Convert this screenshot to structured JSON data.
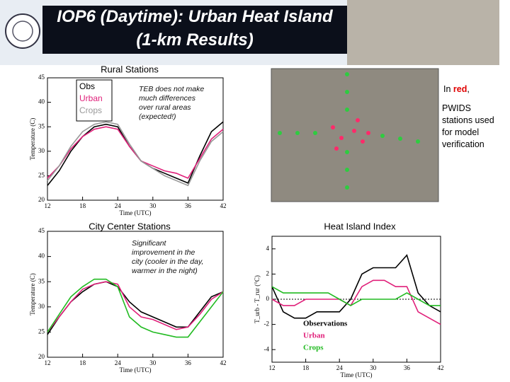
{
  "slide": {
    "title": [
      "IOP6 (Daytime):  Urban Heat Island",
      "(1-km Results)"
    ],
    "note": [
      "In ",
      "red",
      ",",
      "PWIDS stations used for model verification"
    ]
  },
  "chart_data": [
    {
      "type": "line",
      "title": "Rural Stations",
      "annotation": "TEB does not make much differences over rural areas (expected!)",
      "x_label": "Time (UTC)",
      "y_label": "Temperature (C)",
      "xlim": [
        12,
        42
      ],
      "xticks": [
        12,
        18,
        24,
        30,
        36,
        42
      ],
      "ylim": [
        20,
        45
      ],
      "yticks": [
        20,
        25,
        30,
        35,
        40,
        45
      ],
      "legend": "upper-left",
      "x": [
        12,
        14,
        16,
        18,
        20,
        22,
        24,
        26,
        28,
        30,
        32,
        34,
        36,
        38,
        40,
        42
      ],
      "series": [
        {
          "name": "Obs",
          "color": "#000000",
          "values": [
            23,
            26,
            30,
            33,
            35,
            35.5,
            35,
            31,
            28,
            26.5,
            25.5,
            24.5,
            23.5,
            29,
            34,
            36
          ]
        },
        {
          "name": "Urban",
          "color": "#e0207a",
          "values": [
            24.5,
            27,
            30.5,
            33,
            34.5,
            35,
            34.5,
            31,
            28,
            27,
            26,
            25.5,
            24.5,
            28.5,
            32.5,
            34.5
          ]
        },
        {
          "name": "Crops",
          "color": "#999999",
          "values": [
            24,
            27,
            31,
            34,
            35.5,
            36,
            35.5,
            31.5,
            28,
            26.5,
            25,
            24,
            23,
            28,
            32,
            34
          ]
        }
      ]
    },
    {
      "type": "line",
      "title": "City Center Stations",
      "annotation": "Significant improvement in the city (cooler in the day, warmer in the night)",
      "x_label": "Time (UTC)",
      "y_label": "Temperature (C)",
      "xlim": [
        12,
        42
      ],
      "xticks": [
        12,
        18,
        24,
        30,
        36,
        42
      ],
      "ylim": [
        20,
        45
      ],
      "yticks": [
        20,
        25,
        30,
        35,
        40,
        45
      ],
      "x": [
        12,
        14,
        16,
        18,
        20,
        22,
        24,
        26,
        28,
        30,
        32,
        34,
        36,
        38,
        40,
        42
      ],
      "series": [
        {
          "color": "#000000",
          "values": [
            24.5,
            28,
            31,
            33,
            34.5,
            35,
            34,
            31,
            29,
            28,
            27,
            26,
            26,
            29,
            32,
            33
          ]
        },
        {
          "color": "#e0207a",
          "values": [
            25,
            28,
            31,
            33.5,
            34.5,
            35,
            34.5,
            30,
            28,
            27.5,
            26.5,
            25.5,
            26,
            28.5,
            31.5,
            33
          ]
        },
        {
          "color": "#22bb22",
          "values": [
            25,
            28.5,
            32,
            34,
            35.5,
            35.5,
            34,
            28,
            26,
            25,
            24.5,
            24,
            24,
            27,
            30,
            33
          ]
        }
      ]
    },
    {
      "type": "line",
      "title": "Heat Island Index",
      "x_label": "Time (UTC)",
      "y_label": "T_urb - T_rur (°C)",
      "xlim": [
        12,
        42
      ],
      "xticks": [
        12,
        18,
        24,
        30,
        36,
        42
      ],
      "ylim": [
        -5,
        5
      ],
      "yticks": [
        -4,
        -2,
        0,
        2,
        4
      ],
      "legend": "lower-left",
      "x": [
        12,
        14,
        16,
        18,
        20,
        22,
        24,
        26,
        28,
        30,
        32,
        34,
        36,
        38,
        40,
        42
      ],
      "series": [
        {
          "name": "Observations",
          "color": "#000000",
          "values": [
            1,
            -1,
            -1.5,
            -1.5,
            -1,
            -1,
            -1,
            0,
            2,
            2.5,
            2.5,
            2.5,
            3.5,
            0.5,
            -0.5,
            -1
          ]
        },
        {
          "name": "Urban",
          "color": "#e0207a",
          "values": [
            0,
            -0.5,
            -0.5,
            0,
            0,
            0,
            0,
            -0.5,
            1,
            1.5,
            1.5,
            1,
            1,
            -1,
            -1.5,
            -2
          ]
        },
        {
          "name": "Crops",
          "color": "#22bb22",
          "values": [
            1,
            0.5,
            0.5,
            0.5,
            0.5,
            0.5,
            0,
            -0.5,
            0,
            0,
            0,
            0,
            0.5,
            0,
            -0.5,
            -0.5
          ]
        }
      ]
    }
  ]
}
